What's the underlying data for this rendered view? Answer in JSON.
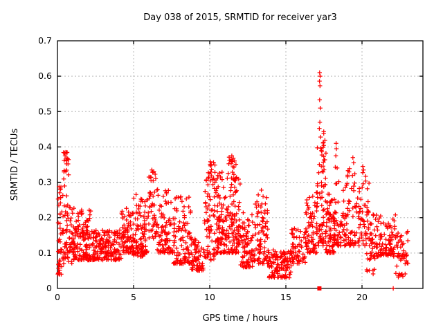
{
  "chart_data": {
    "type": "scatter",
    "title": "Day 038 of 2015, SRMTID for receiver yar3",
    "xlabel": "GPS time / hours",
    "ylabel": "SRMTID / TECUs",
    "xlim": [
      0,
      24
    ],
    "ylim": [
      0,
      0.7
    ],
    "xticks": [
      0,
      5,
      10,
      15,
      20
    ],
    "yticks": [
      0,
      0.1,
      0.2,
      0.3,
      0.4,
      0.5,
      0.6,
      0.7
    ],
    "grid": true,
    "legend": false,
    "marker": {
      "glyph": "plus",
      "color": "#ff0000",
      "size": 6.4
    },
    "series_name": "SRMTID",
    "seed": 7,
    "density_clusters": [
      {
        "n": 45,
        "x": [
          0.02,
          0.3
        ],
        "y": [
          0.04,
          0.3
        ],
        "k": 2.2
      },
      {
        "n": 20,
        "x": [
          0.35,
          0.75
        ],
        "y": [
          0.26,
          0.385
        ],
        "k": 1.0
      },
      {
        "n": 55,
        "x": [
          0.3,
          0.95
        ],
        "y": [
          0.07,
          0.24
        ],
        "k": 1.8
      },
      {
        "n": 150,
        "x": [
          0.95,
          2.2
        ],
        "y": [
          0.08,
          0.23
        ],
        "k": 2.0
      },
      {
        "n": 170,
        "x": [
          2.2,
          4.2
        ],
        "y": [
          0.08,
          0.165
        ],
        "k": 1.5
      },
      {
        "n": 80,
        "x": [
          4.2,
          5.0
        ],
        "y": [
          0.1,
          0.23
        ],
        "k": 1.7
      },
      {
        "n": 105,
        "x": [
          5.0,
          6.0
        ],
        "y": [
          0.09,
          0.27
        ],
        "k": 1.6
      },
      {
        "n": 45,
        "x": [
          6.0,
          6.5
        ],
        "y": [
          0.14,
          0.335
        ],
        "k": 1.4
      },
      {
        "n": 90,
        "x": [
          6.5,
          7.6
        ],
        "y": [
          0.1,
          0.28
        ],
        "k": 1.8
      },
      {
        "n": 110,
        "x": [
          7.6,
          8.8
        ],
        "y": [
          0.07,
          0.26
        ],
        "k": 1.8
      },
      {
        "n": 65,
        "x": [
          8.8,
          9.6
        ],
        "y": [
          0.05,
          0.14
        ],
        "k": 1.3
      },
      {
        "n": 70,
        "x": [
          9.6,
          10.4
        ],
        "y": [
          0.08,
          0.33
        ],
        "k": 1.7
      },
      {
        "n": 12,
        "x": [
          9.9,
          10.35
        ],
        "y": [
          0.29,
          0.36
        ],
        "k": 1.0
      },
      {
        "n": 200,
        "x": [
          10.4,
          12.0
        ],
        "y": [
          0.1,
          0.33
        ],
        "k": 1.7
      },
      {
        "n": 10,
        "x": [
          11.2,
          11.75
        ],
        "y": [
          0.33,
          0.375
        ],
        "k": 1.0
      },
      {
        "n": 85,
        "x": [
          12.0,
          12.9
        ],
        "y": [
          0.06,
          0.22
        ],
        "k": 1.6
      },
      {
        "n": 90,
        "x": [
          12.9,
          13.9
        ],
        "y": [
          0.07,
          0.28
        ],
        "k": 1.9
      },
      {
        "n": 120,
        "x": [
          13.9,
          15.35
        ],
        "y": [
          0.03,
          0.11
        ],
        "k": 1.3
      },
      {
        "n": 60,
        "x": [
          15.35,
          16.3
        ],
        "y": [
          0.07,
          0.17
        ],
        "k": 1.5
      },
      {
        "n": 70,
        "x": [
          16.3,
          17.05
        ],
        "y": [
          0.1,
          0.27
        ],
        "k": 1.6
      },
      {
        "n": 60,
        "x": [
          17.0,
          17.5
        ],
        "y": [
          0.12,
          0.4
        ],
        "k": 1.5
      },
      {
        "n": 16,
        "x": [
          17.4,
          17.65
        ],
        "y": [
          0.28,
          0.455
        ],
        "k": 1.2
      },
      {
        "n": 75,
        "x": [
          17.6,
          18.2
        ],
        "y": [
          0.1,
          0.3
        ],
        "k": 1.7
      },
      {
        "n": 85,
        "x": [
          18.2,
          19.2
        ],
        "y": [
          0.12,
          0.36
        ],
        "k": 1.8
      },
      {
        "n": 90,
        "x": [
          19.2,
          20.5
        ],
        "y": [
          0.12,
          0.33
        ],
        "k": 1.6
      },
      {
        "n": 120,
        "x": [
          20.5,
          22.2
        ],
        "y": [
          0.09,
          0.21
        ],
        "k": 1.5
      },
      {
        "n": 12,
        "x": [
          20.3,
          20.9
        ],
        "y": [
          0.04,
          0.1
        ],
        "k": 1.0
      },
      {
        "n": 50,
        "x": [
          22.2,
          23.05
        ],
        "y": [
          0.03,
          0.17
        ],
        "k": 1.2
      }
    ],
    "extra_points": [
      [
        17.22,
        0.61
      ],
      [
        17.25,
        0.6
      ],
      [
        17.21,
        0.586
      ],
      [
        17.24,
        0.573
      ],
      [
        17.22,
        0.533
      ],
      [
        17.26,
        0.51
      ],
      [
        17.23,
        0.47
      ],
      [
        17.2,
        0.452
      ],
      [
        17.28,
        0.428
      ],
      [
        18.3,
        0.41
      ],
      [
        18.32,
        0.395
      ],
      [
        18.28,
        0.375
      ],
      [
        19.4,
        0.37
      ],
      [
        19.45,
        0.355
      ],
      [
        20.05,
        0.345
      ],
      [
        20.1,
        0.335
      ],
      [
        0.55,
        0.385
      ],
      [
        0.5,
        0.375
      ],
      [
        0.58,
        0.368
      ],
      [
        11.45,
        0.375
      ],
      [
        11.55,
        0.368
      ],
      [
        11.3,
        0.362
      ],
      [
        10.05,
        0.358
      ],
      [
        10.1,
        0.35
      ],
      [
        6.2,
        0.335
      ],
      [
        6.25,
        0.328
      ]
    ],
    "axis_markers": [
      {
        "x": 17.2,
        "y": 0,
        "shape": "square"
      },
      {
        "x": 22.05,
        "y": 0,
        "shape": "plus"
      }
    ]
  }
}
